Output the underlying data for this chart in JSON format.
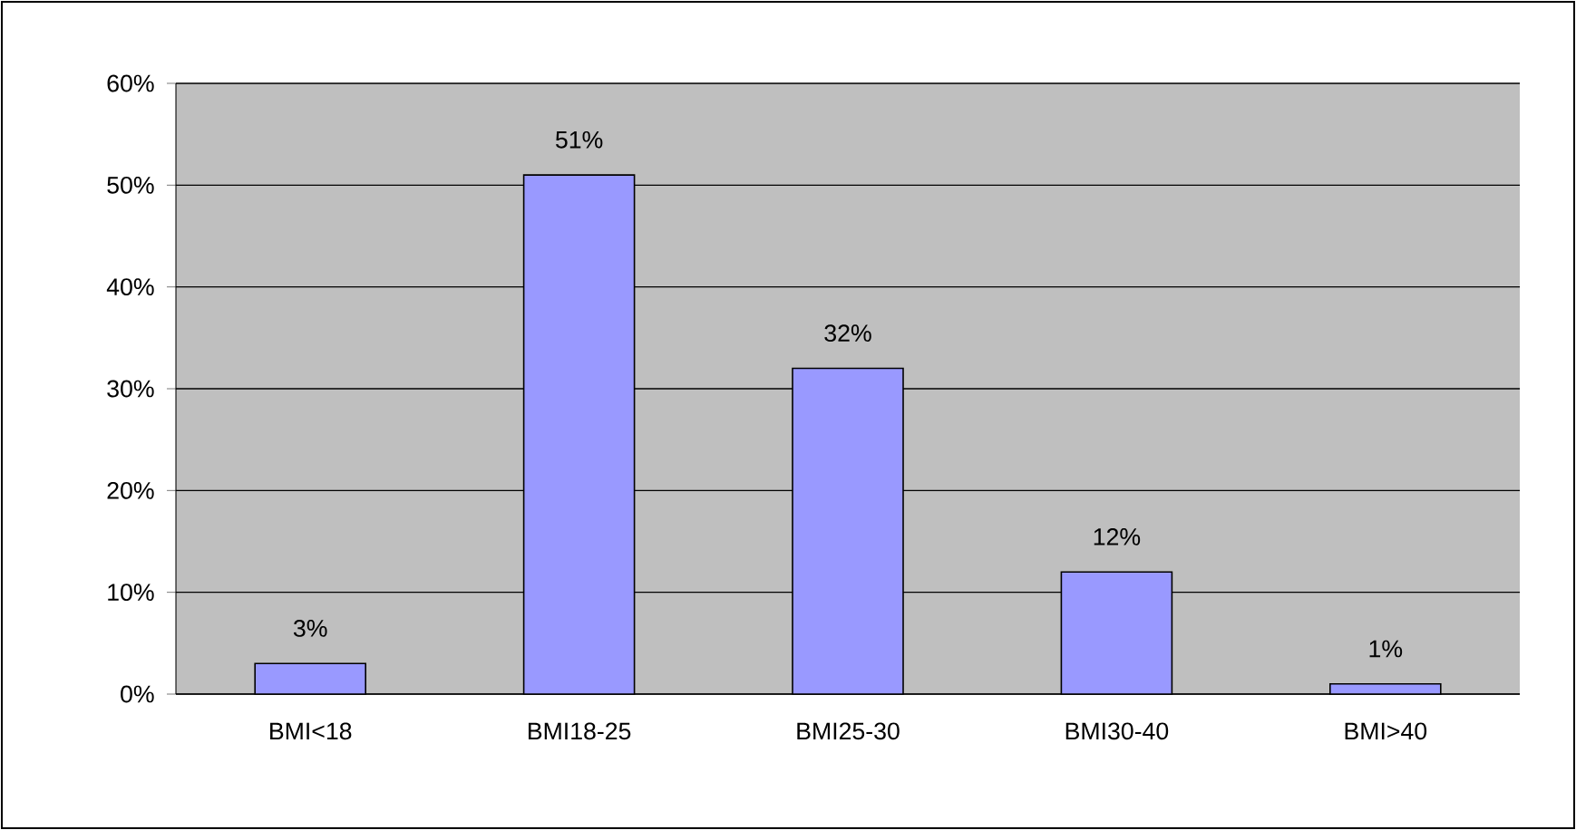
{
  "chart_data": {
    "type": "bar",
    "categories": [
      "BMI<18",
      "BMI18-25",
      "BMI25-30",
      "BMI30-40",
      "BMI>40"
    ],
    "values": [
      3,
      51,
      32,
      12,
      1
    ],
    "value_labels": [
      "3%",
      "51%",
      "32%",
      "12%",
      "1%"
    ],
    "color": "#9999ff",
    "ylim": [
      0,
      60
    ],
    "yticks": [
      {
        "value": 0,
        "label": "0%"
      },
      {
        "value": 10,
        "label": "10%"
      },
      {
        "value": 20,
        "label": "20%"
      },
      {
        "value": 30,
        "label": "30%"
      },
      {
        "value": 40,
        "label": "40%"
      },
      {
        "value": 50,
        "label": "50%"
      },
      {
        "value": 60,
        "label": "60%"
      }
    ],
    "grid": "y"
  }
}
